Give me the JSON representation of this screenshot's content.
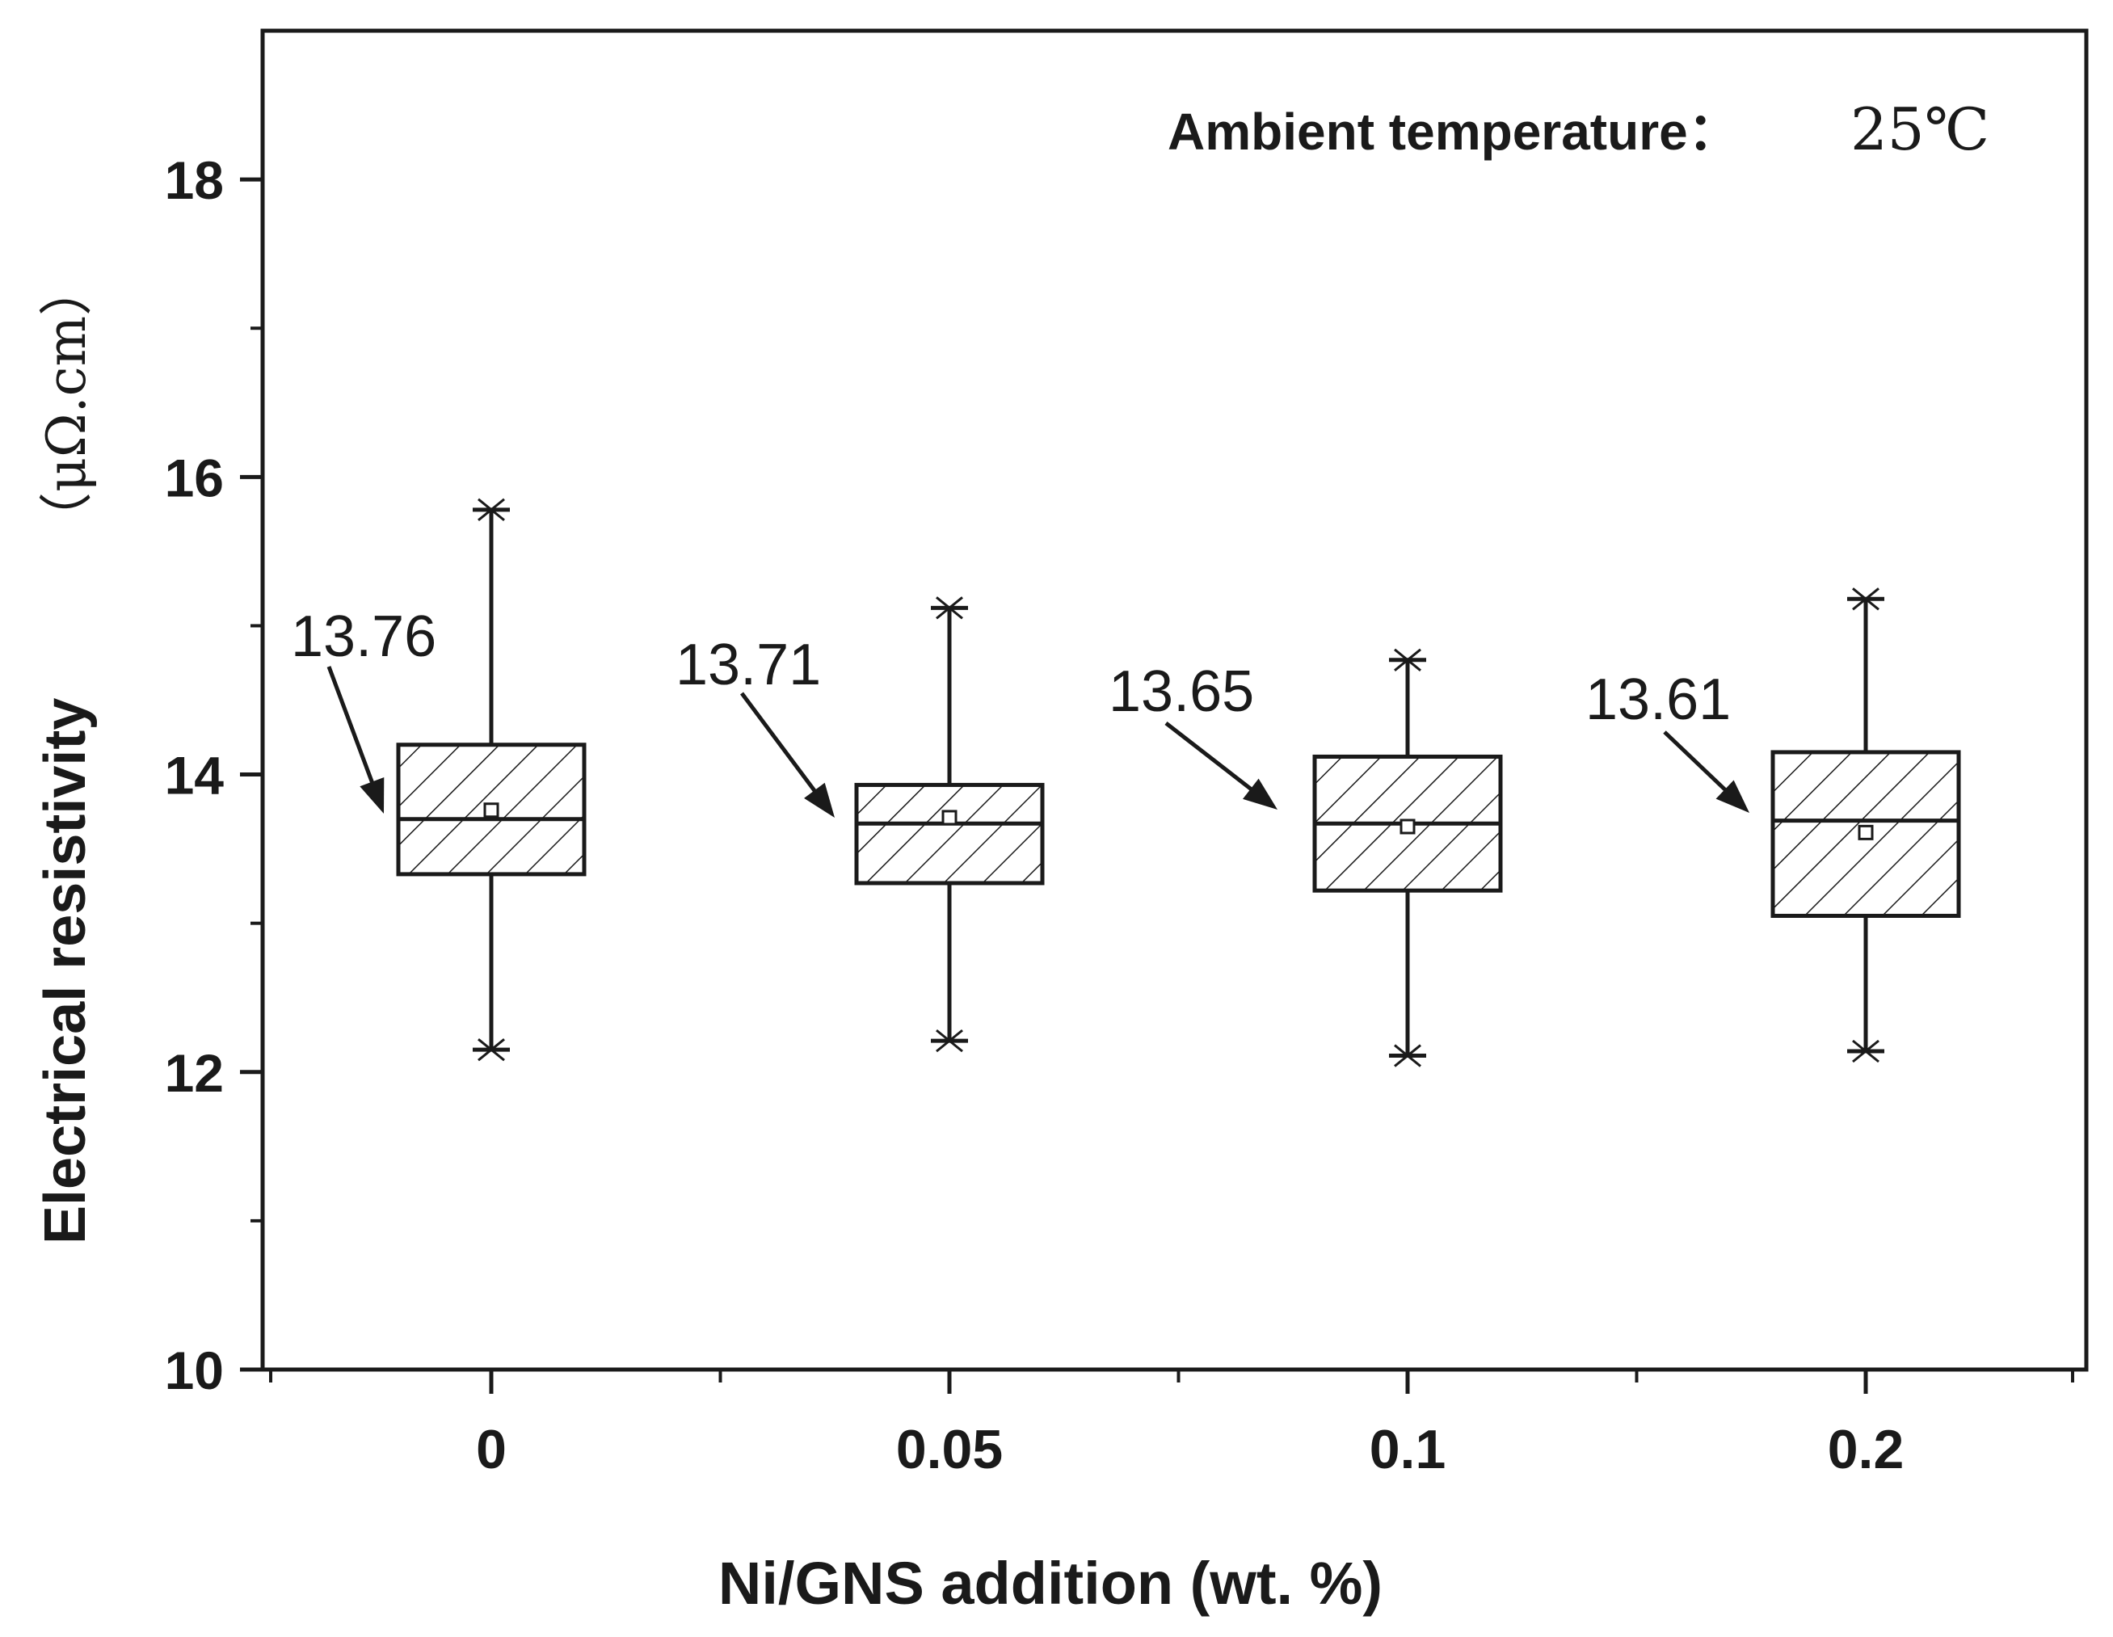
{
  "chart_data": {
    "type": "box",
    "xlabel": "Ni/GNS addition (wt. %)",
    "ylabel_main": "Electrical resistivity",
    "ylabel_unit": "（μΩ.cm）",
    "ylim": [
      10,
      19
    ],
    "y_ticks": [
      "10",
      "12",
      "14",
      "16",
      "18"
    ],
    "y_minor_ticks": [
      11,
      13,
      15,
      17
    ],
    "annotation": {
      "label": "Ambient temperature：",
      "value": "25℃"
    },
    "categories": [
      "0",
      "0.05",
      "0.1",
      "0.2"
    ],
    "boxes": [
      {
        "category": "0",
        "whisker_min": 12.15,
        "q1": 13.33,
        "median": 13.7,
        "q3": 14.2,
        "whisker_max": 15.78,
        "mean": 13.76,
        "mean_label": "13.76"
      },
      {
        "category": "0.05",
        "whisker_min": 12.21,
        "q1": 13.27,
        "median": 13.67,
        "q3": 13.93,
        "whisker_max": 15.12,
        "mean": 13.71,
        "mean_label": "13.71"
      },
      {
        "category": "0.1",
        "whisker_min": 12.11,
        "q1": 13.22,
        "median": 13.67,
        "q3": 14.12,
        "whisker_max": 14.77,
        "mean": 13.65,
        "mean_label": "13.65"
      },
      {
        "category": "0.2",
        "whisker_min": 12.14,
        "q1": 13.05,
        "median": 13.69,
        "q3": 14.15,
        "whisker_max": 15.18,
        "mean": 13.61,
        "mean_label": "13.61"
      }
    ]
  }
}
